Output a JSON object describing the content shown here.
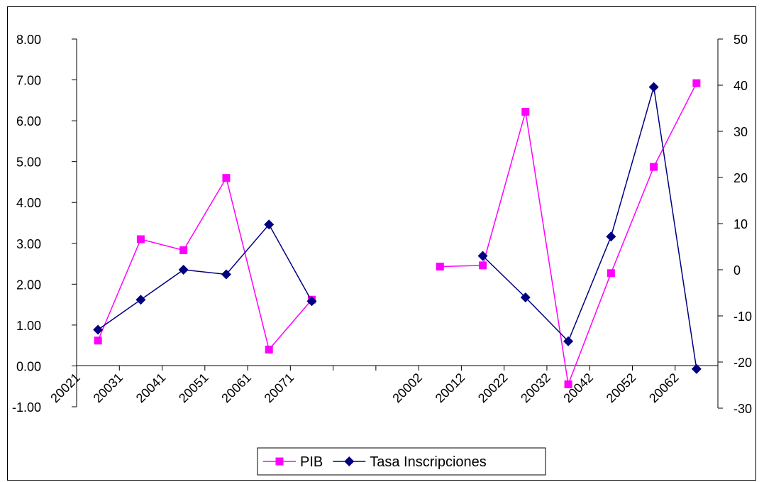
{
  "chart_data": {
    "type": "line",
    "title": "",
    "xlabel": "",
    "ylabel": "",
    "categories": [
      "20021",
      "20031",
      "20041",
      "20051",
      "20061",
      "20071",
      "",
      "",
      "20002",
      "20012",
      "20022",
      "20032",
      "20042",
      "20052",
      "20062"
    ],
    "y_left": {
      "ylim": [
        -1,
        8
      ],
      "ticks": [
        "-1.00",
        "0.00",
        "1.00",
        "2.00",
        "3.00",
        "4.00",
        "5.00",
        "6.00",
        "7.00",
        "8.00"
      ]
    },
    "y_right": {
      "ylim": [
        -30,
        50
      ],
      "ticks": [
        "-30",
        "-20",
        "-10",
        "0",
        "10",
        "20",
        "30",
        "40",
        "50"
      ]
    },
    "grid": false,
    "legend_position": "bottom",
    "series": [
      {
        "name": "PIB",
        "axis": "left",
        "color": "#ff00ff",
        "marker": "square",
        "values": [
          0.62,
          3.1,
          2.83,
          4.6,
          0.4,
          1.62,
          null,
          null,
          2.43,
          2.46,
          6.22,
          -0.45,
          2.27,
          4.87,
          6.92
        ]
      },
      {
        "name": "Tasa Inscripciones",
        "axis": "right",
        "color": "#000080",
        "marker": "diamond",
        "values": [
          -13,
          -6.5,
          0,
          -1,
          9.8,
          -6.8,
          null,
          null,
          null,
          3,
          -6,
          -15.5,
          7.2,
          39.6,
          -21.5
        ]
      }
    ]
  }
}
